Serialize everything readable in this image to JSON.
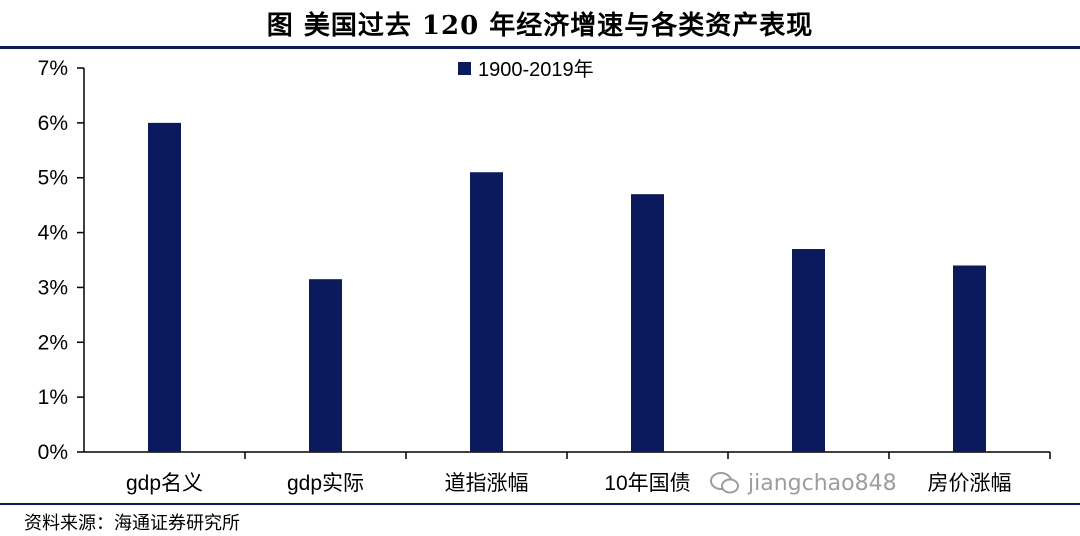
{
  "header": {
    "title": "图 美国过去 120 年经济增速与各类资产表现"
  },
  "footer": {
    "source": "资料来源：海通证券研究所"
  },
  "watermark": {
    "text": "jiangchao848"
  },
  "chart_data": {
    "type": "bar",
    "categories": [
      "gdp名义",
      "gdp实际",
      "道指涨幅",
      "10年国债",
      "",
      "房价涨幅"
    ],
    "series": [
      {
        "name": "1900-2019年",
        "values": [
          6.0,
          3.15,
          5.1,
          4.7,
          3.7,
          3.4
        ],
        "color": "#0b1a5c"
      }
    ],
    "yticks": [
      "0%",
      "1%",
      "2%",
      "3%",
      "4%",
      "5%",
      "6%",
      "7%"
    ],
    "ylim": [
      0,
      7
    ],
    "legend": "top-center",
    "grid": false
  }
}
